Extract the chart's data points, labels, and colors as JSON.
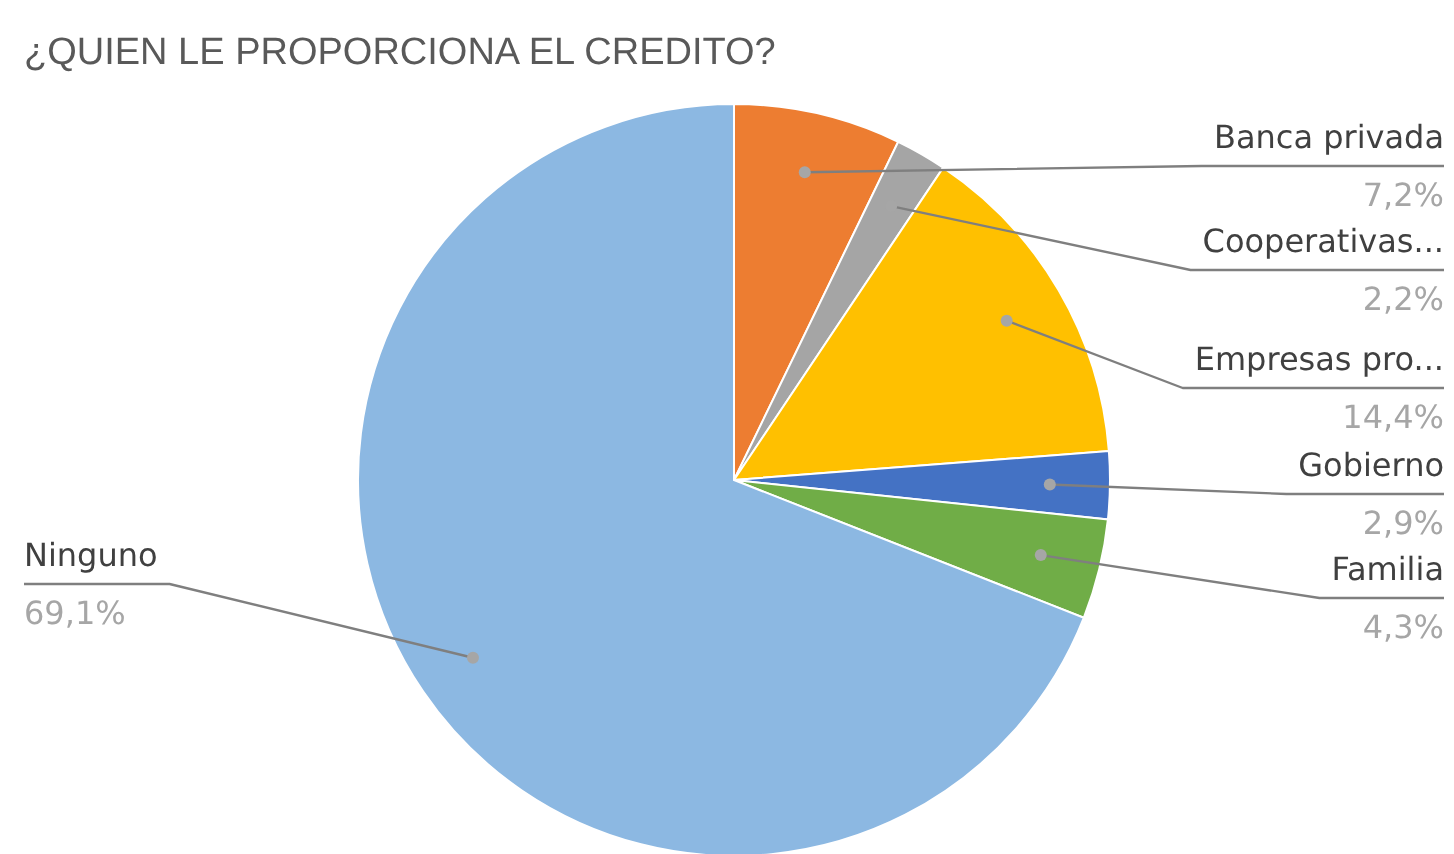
{
  "chart_data": {
    "type": "pie",
    "title": "¿QUIEN LE PROPORCIONA EL CREDITO?",
    "categories": [
      "Banca privada",
      "Cooperativas...",
      "Empresas pro...",
      "Gobierno",
      "Familia",
      "Ninguno"
    ],
    "values": [
      7.2,
      2.2,
      14.4,
      2.9,
      4.3,
      69.1
    ],
    "value_labels": [
      "7,2%",
      "2,2%",
      "14,4%",
      "2,9%",
      "4,3%",
      "69,1%"
    ],
    "colors": [
      "#ed7d31",
      "#a5a5a5",
      "#ffc000",
      "#4472c4",
      "#70ad47",
      "#8cb8e2"
    ],
    "legend": false
  }
}
